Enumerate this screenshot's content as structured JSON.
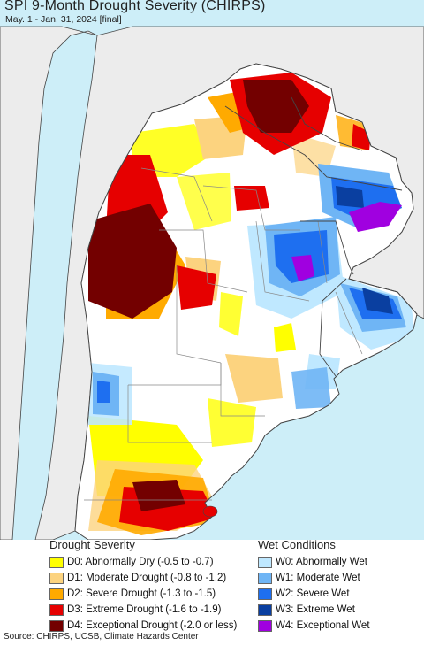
{
  "title": "SPI 9-Month Drought Severity (CHIRPS)",
  "subtitle": "May. 1 - Jan. 31, 2024 [final]",
  "colors": {
    "ocean": "#cdeef8",
    "outside_land": "#ececec",
    "border": "#444444",
    "province_line": "#888888"
  },
  "legend": {
    "drought": {
      "heading": "Drought Severity",
      "items": [
        {
          "label": "D0: Abnormally Dry (-0.5 to -0.7)",
          "color": "#ffff00"
        },
        {
          "label": "D1: Moderate Drought (-0.8 to -1.2)",
          "color": "#fcd37f"
        },
        {
          "label": "D2: Severe Drought (-1.3 to -1.5)",
          "color": "#ffaa00"
        },
        {
          "label": "D3: Extreme Drought (-1.6 to -1.9)",
          "color": "#e60000"
        },
        {
          "label": "D4: Exceptional Drought (-2.0 or less)",
          "color": "#730000"
        }
      ]
    },
    "wet": {
      "heading": "Wet Conditions",
      "items": [
        {
          "label": "W0: Abnormally Wet",
          "color": "#bfe8ff"
        },
        {
          "label": "W1: Moderate Wet",
          "color": "#6fb5f5"
        },
        {
          "label": "W2: Severe Wet",
          "color": "#1e6ff0"
        },
        {
          "label": "W3: Extreme Wet",
          "color": "#0a3fa0"
        },
        {
          "label": "W4: Exceptional Wet",
          "color": "#a000e0"
        }
      ]
    }
  },
  "source": "Source: CHIRPS, UCSB, Climate Hazards Center"
}
